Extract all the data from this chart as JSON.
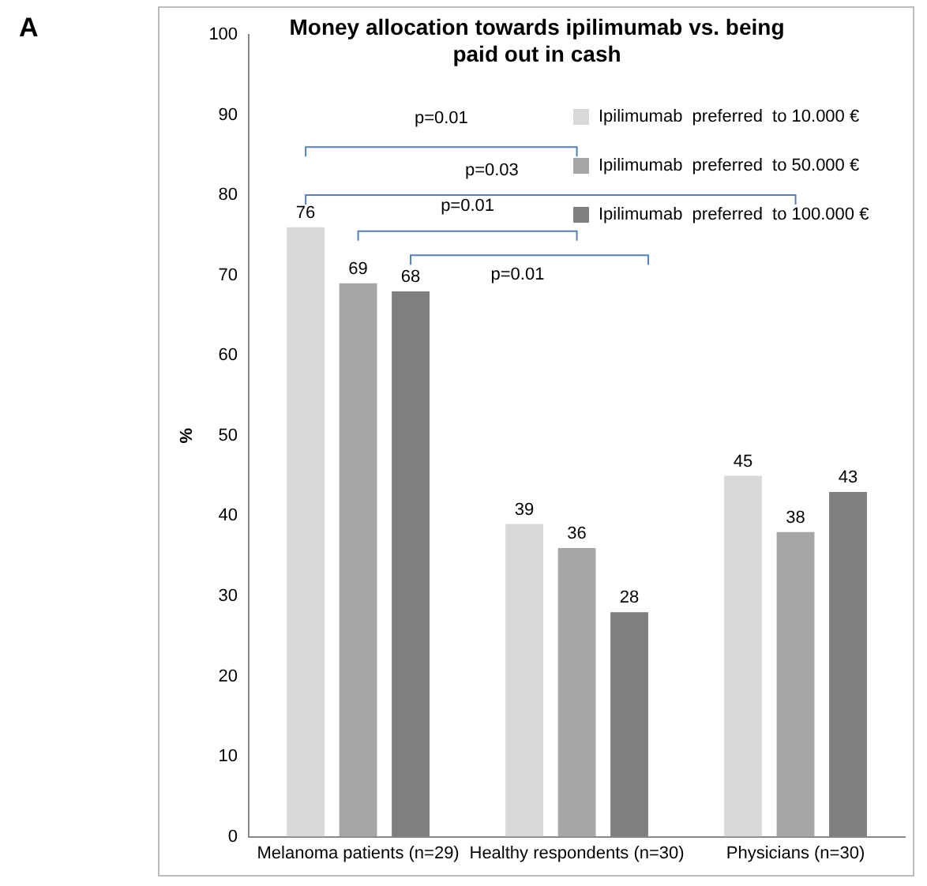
{
  "chart_data": {
    "type": "bar",
    "title": "Money allocation towards ipilimumab vs. being paid out in cash",
    "ylabel": "%",
    "categories": [
      "Melanoma patients (n=29)",
      "Healthy respondents (n=30)",
      "Physicians (n=30)"
    ],
    "series": [
      {
        "name": "Ipilimumab  preferred  to 10.000 €",
        "color": "#d9d9d9",
        "values": [
          76,
          39,
          45
        ]
      },
      {
        "name": "Ipilimumab  preferred  to 50.000 €",
        "color": "#a6a6a6",
        "values": [
          69,
          36,
          38
        ]
      },
      {
        "name": "Ipilimumab  preferred  to 100.000 €",
        "color": "#7f7f7f",
        "values": [
          68,
          28,
          43
        ]
      }
    ],
    "ylim": [
      0,
      100
    ],
    "yticks": [
      0,
      10,
      20,
      30,
      40,
      50,
      60,
      70,
      80,
      90,
      100
    ],
    "grid": false,
    "legend": "top right",
    "data_labels": true,
    "annotations": [
      "A",
      "p=0.01",
      "p=0.03",
      "p=0.01",
      "p=0.01"
    ]
  }
}
